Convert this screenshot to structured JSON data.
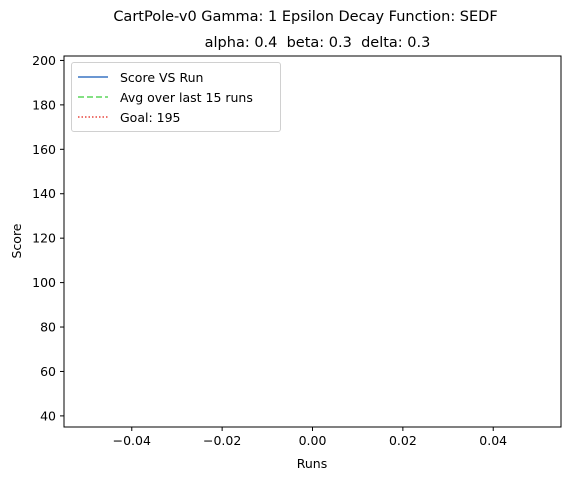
{
  "chart_data": {
    "type": "line",
    "title": "CartPole-v0 Gamma: 1 Epsilon Decay Function: SEDF",
    "subtitle": "alpha: 0.4  beta: 0.3  delta: 0.3",
    "xlabel": "Runs",
    "ylabel": "Score",
    "xlim": [
      -0.055,
      0.055
    ],
    "ylim": [
      35,
      202
    ],
    "xticks": [
      -0.04,
      -0.02,
      0.0,
      0.02,
      0.04
    ],
    "xtick_labels": [
      "−0.04",
      "−0.02",
      "0.00",
      "0.02",
      "0.04"
    ],
    "yticks": [
      40,
      60,
      80,
      100,
      120,
      140,
      160,
      180,
      200
    ],
    "yticks_labels": [
      "40",
      "60",
      "80",
      "100",
      "120",
      "140",
      "160",
      "180",
      "200"
    ],
    "grid": false,
    "legend_position": "top-left",
    "series": [
      {
        "name": "Score VS Run",
        "style": "solid",
        "color": "#3a75c4",
        "x": [],
        "y": []
      },
      {
        "name": "Avg over last 15 runs",
        "style": "dashed",
        "color": "#5cd65c",
        "x": [],
        "y": []
      },
      {
        "name": "Goal: 195",
        "style": "dotted",
        "color": "#e8473f",
        "x": [],
        "y": []
      }
    ]
  }
}
